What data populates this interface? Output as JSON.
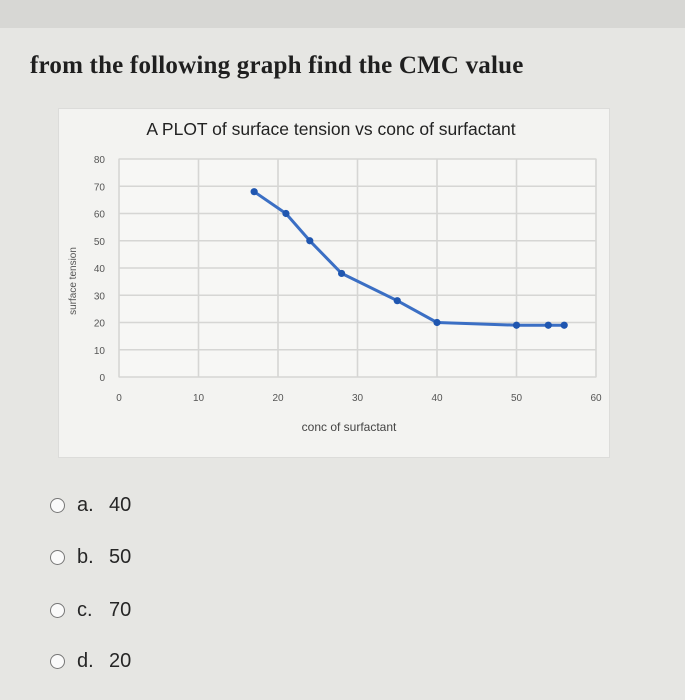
{
  "question": "from the following graph find the CMC value",
  "colors": {
    "line": "#3b6fc4",
    "background": "#e6e6e3",
    "plot_area": "#f3f3f1",
    "grid": "#d6d6d4"
  },
  "chart_data": {
    "type": "line",
    "title": "A PLOT of surface tension vs conc of surfactant",
    "xlabel": "conc of surfactant",
    "ylabel": "surface tension",
    "xlim": [
      0,
      60
    ],
    "ylim": [
      0,
      80
    ],
    "x_ticks": [
      "0",
      "10",
      "20",
      "30",
      "40",
      "50",
      "60"
    ],
    "y_ticks": [
      "0",
      "10",
      "20",
      "30",
      "40",
      "50",
      "60",
      "70",
      "80"
    ],
    "grid": true,
    "series": [
      {
        "x": [
          17,
          21,
          24,
          28,
          35,
          40,
          50,
          54,
          56
        ],
        "y": [
          68,
          60,
          50,
          38,
          28,
          20,
          19,
          19,
          19
        ]
      }
    ]
  },
  "options": [
    {
      "letter": "a.",
      "value": "40"
    },
    {
      "letter": "b.",
      "value": "50"
    },
    {
      "letter": "c.",
      "value": "70"
    },
    {
      "letter": "d.",
      "value": "20"
    }
  ]
}
